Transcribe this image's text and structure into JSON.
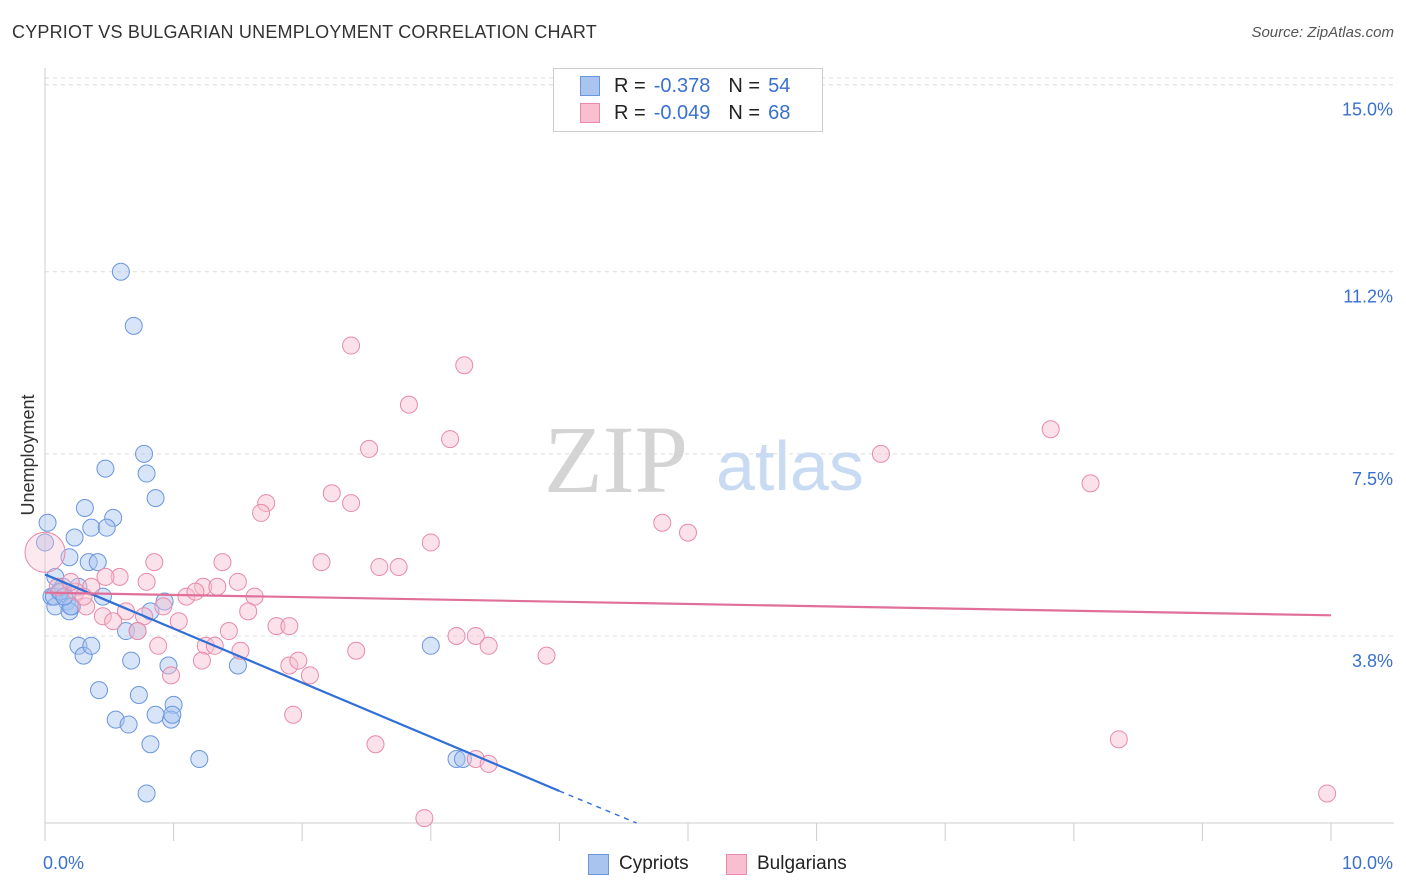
{
  "header": {
    "title": "CYPRIOT VS BULGARIAN UNEMPLOYMENT CORRELATION CHART",
    "source": "Source: ZipAtlas.com"
  },
  "watermark": {
    "zip": "ZIP",
    "atlas": "atlas"
  },
  "legend": {
    "rows": [
      {
        "r_label": "R =",
        "r_value": "-0.378",
        "n_label": "N =",
        "n_value": "54",
        "color": "#a9c4ef",
        "border": "#6a96dd"
      },
      {
        "r_label": "R =",
        "r_value": "-0.049",
        "n_label": "N =",
        "n_value": "68",
        "color": "#f7bfd0",
        "border": "#e98aa8"
      }
    ]
  },
  "bottom_legend": [
    {
      "label": "Cypriots",
      "color": "#a9c4ef",
      "border": "#6a96dd"
    },
    {
      "label": "Bulgarians",
      "color": "#f7bfd0",
      "border": "#e98aa8"
    }
  ],
  "chart_data": {
    "type": "scatter",
    "title": "CYPRIOT VS BULGARIAN UNEMPLOYMENT CORRELATION CHART",
    "xlabel": "",
    "ylabel": "Unemployment",
    "xlim": [
      0,
      10
    ],
    "ylim": [
      0,
      15.4
    ],
    "x_tick_labels": [
      {
        "value": 0,
        "label": "0.0%"
      },
      {
        "value": 10,
        "label": "10.0%"
      }
    ],
    "y_ticks": [
      {
        "value": 3.8,
        "label": "3.8%"
      },
      {
        "value": 7.5,
        "label": "7.5%"
      },
      {
        "value": 11.2,
        "label": "11.2%"
      },
      {
        "value": 15.0,
        "label": "15.0%"
      }
    ],
    "x_minor_ticks": [
      0,
      1,
      2,
      3,
      4,
      5,
      6,
      7,
      8,
      9,
      10
    ],
    "grid": true,
    "series": [
      {
        "name": "Cypriots",
        "color": "#6a96dd",
        "fill": "#a9c4ef",
        "points": [
          [
            0.59,
            11.2
          ],
          [
            0.69,
            10.1
          ],
          [
            0.77,
            7.5
          ],
          [
            0.47,
            7.2
          ],
          [
            0.79,
            7.1
          ],
          [
            0.86,
            6.6
          ],
          [
            0.31,
            6.4
          ],
          [
            0.02,
            6.1
          ],
          [
            0.53,
            6.2
          ],
          [
            0.36,
            6.0
          ],
          [
            0.48,
            6.0
          ],
          [
            0.0,
            5.7
          ],
          [
            0.23,
            5.8
          ],
          [
            0.34,
            5.3
          ],
          [
            0.41,
            5.3
          ],
          [
            0.19,
            5.4
          ],
          [
            0.08,
            5.0
          ],
          [
            0.05,
            4.6
          ],
          [
            0.11,
            4.7
          ],
          [
            0.14,
            4.8
          ],
          [
            0.17,
            4.5
          ],
          [
            0.21,
            4.4
          ],
          [
            0.26,
            4.8
          ],
          [
            0.08,
            4.4
          ],
          [
            0.19,
            4.3
          ],
          [
            0.45,
            4.6
          ],
          [
            0.93,
            4.5
          ],
          [
            0.82,
            4.3
          ],
          [
            0.63,
            3.9
          ],
          [
            0.67,
            3.3
          ],
          [
            0.72,
            3.9
          ],
          [
            0.96,
            3.2
          ],
          [
            1.5,
            3.2
          ],
          [
            0.26,
            3.6
          ],
          [
            0.3,
            3.4
          ],
          [
            0.36,
            3.6
          ],
          [
            0.42,
            2.7
          ],
          [
            0.73,
            2.6
          ],
          [
            1.0,
            2.4
          ],
          [
            0.55,
            2.1
          ],
          [
            0.65,
            2.0
          ],
          [
            0.86,
            2.2
          ],
          [
            0.98,
            2.1
          ],
          [
            0.99,
            2.2
          ],
          [
            0.82,
            1.6
          ],
          [
            1.2,
            1.3
          ],
          [
            3.0,
            3.6
          ],
          [
            3.2,
            1.3
          ],
          [
            3.25,
            1.3
          ],
          [
            0.79,
            0.6
          ],
          [
            0.07,
            4.6
          ],
          [
            0.12,
            4.7
          ],
          [
            0.2,
            4.4
          ],
          [
            0.15,
            4.6
          ]
        ],
        "trend": {
          "x_start": 0.0,
          "y_start": 5.05,
          "x_solid_end": 4.0,
          "y_solid_end": 0.65,
          "x_dash_end": 4.6,
          "y_dash_end": 0.0
        }
      },
      {
        "name": "Bulgarians",
        "color": "#e98aa8",
        "fill": "#f7bfd0",
        "points": [
          [
            0.0,
            5.5
          ],
          [
            2.38,
            9.7
          ],
          [
            3.26,
            9.3
          ],
          [
            2.83,
            8.5
          ],
          [
            7.82,
            8.0
          ],
          [
            3.15,
            7.8
          ],
          [
            2.52,
            7.6
          ],
          [
            6.5,
            7.5
          ],
          [
            8.13,
            6.9
          ],
          [
            2.23,
            6.7
          ],
          [
            2.38,
            6.5
          ],
          [
            1.72,
            6.5
          ],
          [
            1.68,
            6.3
          ],
          [
            4.8,
            6.1
          ],
          [
            5.0,
            5.9
          ],
          [
            3.0,
            5.7
          ],
          [
            2.15,
            5.3
          ],
          [
            1.38,
            5.3
          ],
          [
            0.85,
            5.3
          ],
          [
            2.6,
            5.2
          ],
          [
            2.75,
            5.2
          ],
          [
            0.58,
            5.0
          ],
          [
            0.79,
            4.9
          ],
          [
            1.5,
            4.9
          ],
          [
            1.23,
            4.8
          ],
          [
            1.34,
            4.8
          ],
          [
            0.1,
            4.8
          ],
          [
            0.24,
            4.7
          ],
          [
            0.36,
            4.8
          ],
          [
            1.1,
            4.6
          ],
          [
            1.63,
            4.6
          ],
          [
            0.32,
            4.4
          ],
          [
            0.63,
            4.3
          ],
          [
            0.45,
            4.2
          ],
          [
            0.53,
            4.1
          ],
          [
            0.77,
            4.2
          ],
          [
            1.04,
            4.1
          ],
          [
            1.58,
            4.3
          ],
          [
            0.72,
            3.9
          ],
          [
            1.43,
            3.9
          ],
          [
            1.8,
            4.0
          ],
          [
            1.9,
            4.0
          ],
          [
            3.2,
            3.8
          ],
          [
            3.35,
            3.8
          ],
          [
            0.88,
            3.6
          ],
          [
            1.25,
            3.6
          ],
          [
            1.32,
            3.6
          ],
          [
            1.52,
            3.5
          ],
          [
            3.45,
            3.6
          ],
          [
            2.42,
            3.5
          ],
          [
            1.22,
            3.3
          ],
          [
            1.9,
            3.2
          ],
          [
            1.97,
            3.3
          ],
          [
            2.06,
            3.0
          ],
          [
            0.98,
            3.0
          ],
          [
            3.9,
            3.4
          ],
          [
            1.93,
            2.2
          ],
          [
            2.57,
            1.6
          ],
          [
            3.35,
            1.3
          ],
          [
            3.45,
            1.2
          ],
          [
            8.35,
            1.7
          ],
          [
            9.97,
            0.6
          ],
          [
            2.95,
            0.1
          ],
          [
            0.2,
            4.9
          ],
          [
            0.3,
            4.6
          ],
          [
            0.47,
            5.0
          ],
          [
            1.17,
            4.7
          ],
          [
            0.92,
            4.4
          ]
        ],
        "trend": {
          "x_start": 0.0,
          "y_start": 4.68,
          "x_solid_end": 10.0,
          "y_solid_end": 4.22
        }
      }
    ]
  }
}
